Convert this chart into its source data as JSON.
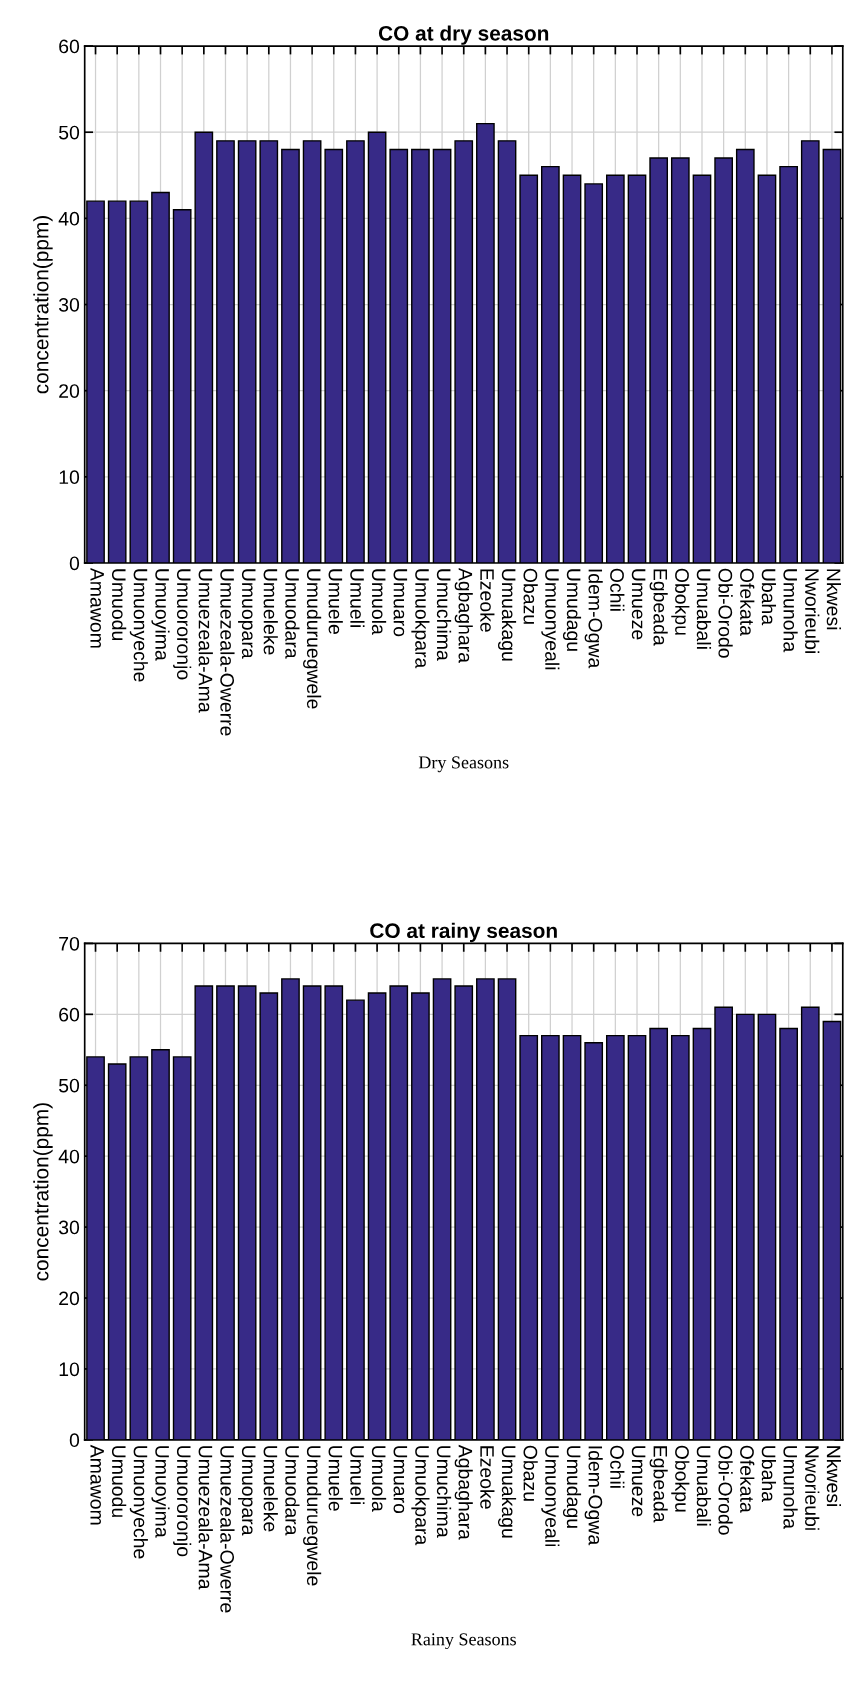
{
  "chart_data": [
    {
      "type": "bar",
      "title": "CO at dry season",
      "xlabel": "Dry Seasons",
      "ylabel": "concentration(ppm)",
      "categories": [
        "Amawom",
        "Umuodu",
        "Umuonyeche",
        "Umuoyima",
        "Umuororonjo",
        "Umuezeala-Ama",
        "Umuezeala-Owerre",
        "Umuopara",
        "Umueleke",
        "Umuodara",
        "Umuduruegwele",
        "Umuele",
        "Umueli",
        "Umuola",
        "Umuaro",
        "Umuokpara",
        "Umuchima",
        "Agbaghara",
        "Ezeoke",
        "Umuakagu",
        "Obazu",
        "Umuonyeali",
        "Umudagu",
        "Idem-Ogwa",
        "Ochii",
        "Umueze",
        "Egbeada",
        "Obokpu",
        "Umuabali",
        "Obi-Orodo",
        "Ofekata",
        "Ubaha",
        "Umunoha",
        "Nworieubi",
        "Nkwesi"
      ],
      "values": [
        42,
        42,
        42,
        43,
        41,
        50,
        49,
        49,
        49,
        48,
        49,
        48,
        49,
        50,
        48,
        48,
        48,
        49,
        51,
        49,
        45,
        46,
        45,
        44,
        45,
        45,
        47,
        47,
        45,
        47,
        48,
        45,
        46,
        49,
        48
      ],
      "color": "#372a87",
      "ylim": [
        0,
        60
      ],
      "yticks": [
        0,
        10,
        20,
        30,
        40,
        50,
        60
      ],
      "grid": true
    },
    {
      "type": "bar",
      "title": "CO at rainy season",
      "xlabel": "Rainy Seasons",
      "ylabel": "concentration(ppm)",
      "categories": [
        "Amawom",
        "Umuodu",
        "Umuonyeche",
        "Umuoyima",
        "Umuororonjo",
        "Umuezeala-Ama",
        "Umuezeala-Owerre",
        "Umuopara",
        "Umueleke",
        "Umuodara",
        "Umuduruegwele",
        "Umuele",
        "Umueli",
        "Umuola",
        "Umuaro",
        "Umuokpara",
        "Umuchima",
        "Agbaghara",
        "Ezeoke",
        "Umuakagu",
        "Obazu",
        "Umuonyeali",
        "Umudagu",
        "Idem-Ogwa",
        "Ochii",
        "Umueze",
        "Egbeada",
        "Obokpu",
        "Umuabali",
        "Obi-Orodo",
        "Ofekata",
        "Ubaha",
        "Umunoha",
        "Nworieubi",
        "Nkwesi"
      ],
      "values": [
        54,
        53,
        54,
        55,
        54,
        64,
        64,
        64,
        63,
        65,
        64,
        64,
        62,
        63,
        64,
        63,
        65,
        64,
        65,
        65,
        57,
        57,
        57,
        56,
        57,
        57,
        58,
        57,
        58,
        61,
        60,
        60,
        58,
        61,
        59
      ],
      "color": "#372a87",
      "ylim": [
        0,
        70
      ],
      "yticks": [
        0,
        10,
        20,
        30,
        40,
        50,
        60,
        70
      ],
      "grid": true
    }
  ]
}
